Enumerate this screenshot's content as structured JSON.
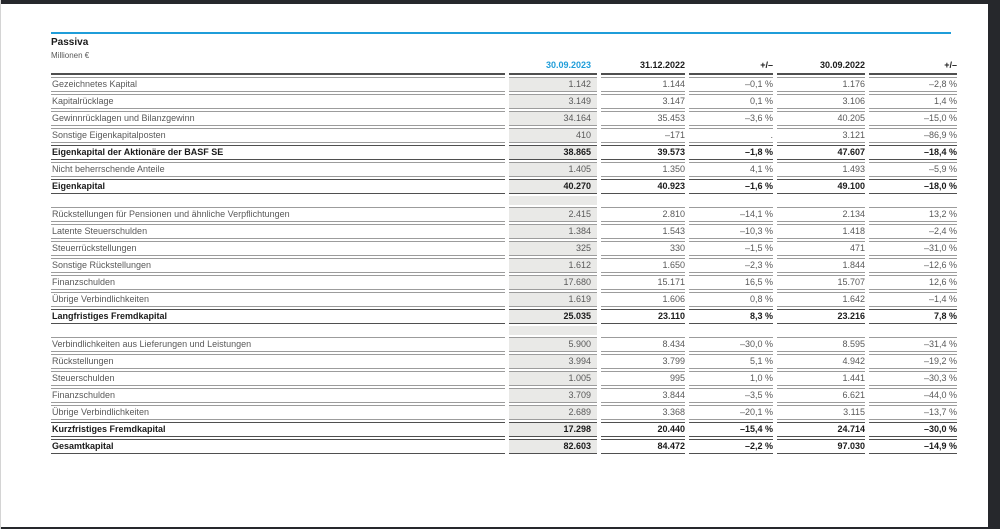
{
  "page": {
    "title": "Passiva",
    "subtitle": "Millionen €",
    "accent_blue": "#1f9dd9",
    "frame_color": "#26282c",
    "highlight_column_bg": "#e9e9e7"
  },
  "table": {
    "columns": [
      "",
      "30.09.2023",
      "31.12.2022",
      "+/–",
      "30.09.2022",
      "+/–"
    ],
    "sections": [
      {
        "rows": [
          {
            "label": "Gezeichnetes Kapital",
            "bold": false,
            "values": [
              "1.142",
              "1.144",
              "–0,1 %",
              "1.176",
              "–2,8 %"
            ]
          },
          {
            "label": "Kapitalrücklage",
            "bold": false,
            "values": [
              "3.149",
              "3.147",
              "0,1 %",
              "3.106",
              "1,4 %"
            ]
          },
          {
            "label": "Gewinnrücklagen und Bilanzgewinn",
            "bold": false,
            "values": [
              "34.164",
              "35.453",
              "–3,6 %",
              "40.205",
              "–15,0 %"
            ]
          },
          {
            "label": "Sonstige Eigenkapitalposten",
            "bold": false,
            "values": [
              "410",
              "–171",
              ".",
              "3.121",
              "–86,9 %"
            ]
          },
          {
            "label": "Eigenkapital der Aktionäre der BASF SE",
            "bold": true,
            "values": [
              "38.865",
              "39.573",
              "–1,8 %",
              "47.607",
              "–18,4 %"
            ]
          },
          {
            "label": "Nicht beherrschende Anteile",
            "bold": false,
            "values": [
              "1.405",
              "1.350",
              "4,1 %",
              "1.493",
              "–5,9 %"
            ]
          },
          {
            "label": "Eigenkapital",
            "bold": true,
            "values": [
              "40.270",
              "40.923",
              "–1,6 %",
              "49.100",
              "–18,0 %"
            ]
          }
        ]
      },
      {
        "rows": [
          {
            "label": "Rückstellungen für Pensionen und ähnliche Verpflichtungen",
            "bold": false,
            "values": [
              "2.415",
              "2.810",
              "–14,1 %",
              "2.134",
              "13,2 %"
            ]
          },
          {
            "label": "Latente Steuerschulden",
            "bold": false,
            "values": [
              "1.384",
              "1.543",
              "–10,3 %",
              "1.418",
              "–2,4 %"
            ]
          },
          {
            "label": "Steuerrückstellungen",
            "bold": false,
            "values": [
              "325",
              "330",
              "–1,5 %",
              "471",
              "–31,0 %"
            ]
          },
          {
            "label": "Sonstige Rückstellungen",
            "bold": false,
            "values": [
              "1.612",
              "1.650",
              "–2,3 %",
              "1.844",
              "–12,6 %"
            ]
          },
          {
            "label": "Finanzschulden",
            "bold": false,
            "values": [
              "17.680",
              "15.171",
              "16,5 %",
              "15.707",
              "12,6 %"
            ]
          },
          {
            "label": "Übrige Verbindlichkeiten",
            "bold": false,
            "values": [
              "1.619",
              "1.606",
              "0,8 %",
              "1.642",
              "–1,4 %"
            ]
          },
          {
            "label": "Langfristiges Fremdkapital",
            "bold": true,
            "values": [
              "25.035",
              "23.110",
              "8,3 %",
              "23.216",
              "7,8 %"
            ]
          }
        ]
      },
      {
        "rows": [
          {
            "label": "Verbindlichkeiten aus Lieferungen und Leistungen",
            "bold": false,
            "values": [
              "5.900",
              "8.434",
              "–30,0 %",
              "8.595",
              "–31,4 %"
            ]
          },
          {
            "label": "Rückstellungen",
            "bold": false,
            "values": [
              "3.994",
              "3.799",
              "5,1 %",
              "4.942",
              "–19,2 %"
            ]
          },
          {
            "label": "Steuerschulden",
            "bold": false,
            "values": [
              "1.005",
              "995",
              "1,0 %",
              "1.441",
              "–30,3 %"
            ]
          },
          {
            "label": "Finanzschulden",
            "bold": false,
            "values": [
              "3.709",
              "3.844",
              "–3,5 %",
              "6.621",
              "–44,0 %"
            ]
          },
          {
            "label": "Übrige Verbindlichkeiten",
            "bold": false,
            "values": [
              "2.689",
              "3.368",
              "–20,1 %",
              "3.115",
              "–13,7 %"
            ]
          },
          {
            "label": "Kurzfristiges Fremdkapital",
            "bold": true,
            "values": [
              "17.298",
              "20.440",
              "–15,4 %",
              "24.714",
              "–30,0 %"
            ]
          },
          {
            "label": "Gesamtkapital",
            "bold": true,
            "values": [
              "82.603",
              "84.472",
              "–2,2 %",
              "97.030",
              "–14,9 %"
            ]
          }
        ]
      }
    ]
  }
}
